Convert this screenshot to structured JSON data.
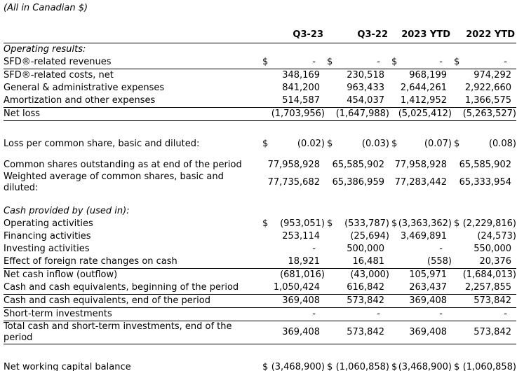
{
  "note": "(All in Canadian $)",
  "currency_symbol": "$",
  "columns": [
    "Q3-23",
    "Q3-22",
    "2023 YTD",
    "2022 YTD"
  ],
  "rows": [
    {
      "type": "section",
      "label": "Operating results:"
    },
    {
      "type": "data",
      "label": "SFD®-related revenues",
      "dollar": true,
      "values": [
        "-",
        "-",
        "-",
        "-"
      ],
      "rule_below": true
    },
    {
      "type": "data",
      "label": "SFD®-related costs, net",
      "values": [
        "348,169",
        "230,518",
        "968,199",
        "974,292"
      ]
    },
    {
      "type": "data",
      "label": "General & administrative expenses",
      "values": [
        "841,200",
        "963,433",
        "2,644,261",
        "2,922,660"
      ]
    },
    {
      "type": "data",
      "label": "Amortization and other expenses",
      "values": [
        "514,587",
        "454,037",
        "1,412,952",
        "1,366,575"
      ],
      "rule_below": true
    },
    {
      "type": "data",
      "label": "Net loss",
      "values": [
        "(1,703,956)",
        "(1,647,988)",
        "(5,025,412)",
        "(5,263,527)"
      ],
      "rule_below": true
    },
    {
      "type": "spacer",
      "height": 24
    },
    {
      "type": "data",
      "label": "Loss per common share, basic and diluted:",
      "dollar": true,
      "values": [
        "(0.02)",
        "(0.03)",
        "(0.07)",
        "(0.08)"
      ]
    },
    {
      "type": "spacer",
      "height": 12
    },
    {
      "type": "data",
      "label": "Common shares outstanding as at end of the period",
      "values": [
        "77,958,928",
        "65,585,902",
        "77,958,928",
        "65,585,902"
      ]
    },
    {
      "type": "data",
      "label": "Weighted average of common shares, basic and diluted:",
      "values": [
        "77,735,682",
        "65,386,959",
        "77,283,442",
        "65,333,954"
      ]
    },
    {
      "type": "spacer",
      "height": 16
    },
    {
      "type": "section",
      "label": "Cash provided by (used in):"
    },
    {
      "type": "data",
      "label": "Operating activities",
      "dollar": true,
      "values": [
        "(953,051)",
        "(533,787)",
        "(3,363,362)",
        "(2,229,816)"
      ]
    },
    {
      "type": "data",
      "label": "Financing activities",
      "values": [
        "253,114",
        "(25,694)",
        "3,469,891",
        "(24,573)"
      ]
    },
    {
      "type": "data",
      "label": "Investing activities",
      "values": [
        "-",
        "500,000",
        "-",
        "550,000"
      ]
    },
    {
      "type": "data",
      "label": "Effect of foreign rate changes on cash",
      "values": [
        "18,921",
        "16,481",
        "(558)",
        "20,376"
      ],
      "rule_below": true
    },
    {
      "type": "data",
      "label": "Net cash inflow (outflow)",
      "values": [
        "(681,016)",
        "(43,000)",
        "105,971",
        "(1,684,013)"
      ]
    },
    {
      "type": "data",
      "label": "Cash and cash equivalents, beginning of the period",
      "values": [
        "1,050,424",
        "616,842",
        "263,437",
        "2,257,855"
      ],
      "rule_below": true
    },
    {
      "type": "data",
      "label": "Cash and cash equivalents, end of the period",
      "values": [
        "369,408",
        "573,842",
        "369,408",
        "573,842"
      ],
      "rule_below": true
    },
    {
      "type": "data",
      "label": "Short-term investments",
      "values": [
        "-",
        "-",
        "-",
        "-"
      ],
      "rule_below": true
    },
    {
      "type": "data",
      "label": "Total cash and short-term investments, end of the period",
      "values": [
        "369,408",
        "573,842",
        "369,408",
        "573,842"
      ],
      "rule_below": true
    },
    {
      "type": "spacer",
      "height": 24
    },
    {
      "type": "data",
      "label": "Net working capital balance",
      "dollar": true,
      "values": [
        "(3,468,900)",
        "(1,060,858)",
        "(3,468,900)",
        "(1,060,858)"
      ],
      "rule_below": true
    }
  ]
}
